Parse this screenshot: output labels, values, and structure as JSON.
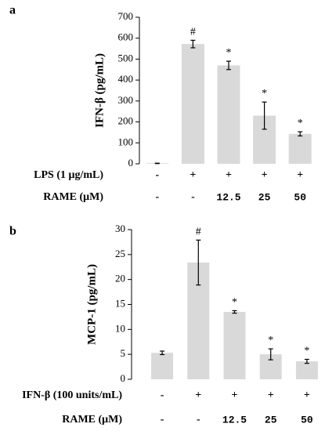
{
  "chart_data": [
    {
      "panel_label": "a",
      "type": "bar",
      "ylabel": "IFN-β (pg/mL)",
      "ylim": [
        0,
        700
      ],
      "yticks": [
        0,
        100,
        200,
        300,
        400,
        500,
        600,
        700
      ],
      "values": [
        2,
        572,
        470,
        230,
        143
      ],
      "errors": [
        1,
        18,
        20,
        65,
        10
      ],
      "annotations": [
        "",
        "#",
        "*",
        "*",
        "*"
      ],
      "bar_color": "#d9d9d9",
      "grid": false,
      "conditions": [
        {
          "label": "LPS (1 μg/mL)",
          "values": [
            "-",
            "+",
            "+",
            "+",
            "+"
          ]
        },
        {
          "label": "RAME (μM)",
          "values": [
            "-",
            "-",
            "12.5",
            "25",
            "50"
          ]
        }
      ]
    },
    {
      "panel_label": "b",
      "type": "bar",
      "ylabel": "MCP-1 (pg/mL)",
      "ylim": [
        0,
        30
      ],
      "yticks": [
        0,
        5,
        10,
        15,
        20,
        25,
        30
      ],
      "values": [
        5.3,
        23.4,
        13.5,
        5.0,
        3.6
      ],
      "errors": [
        0.35,
        4.5,
        0.25,
        1.1,
        0.4
      ],
      "annotations": [
        "",
        "#",
        "*",
        "*",
        "*"
      ],
      "bar_color": "#d9d9d9",
      "grid": false,
      "conditions": [
        {
          "label": "IFN-β (100 units/mL)",
          "values": [
            "-",
            "+",
            "+",
            "+",
            "+"
          ]
        },
        {
          "label": "RAME (μM)",
          "values": [
            "-",
            "-",
            "12.5",
            "25",
            "50"
          ]
        }
      ]
    }
  ]
}
